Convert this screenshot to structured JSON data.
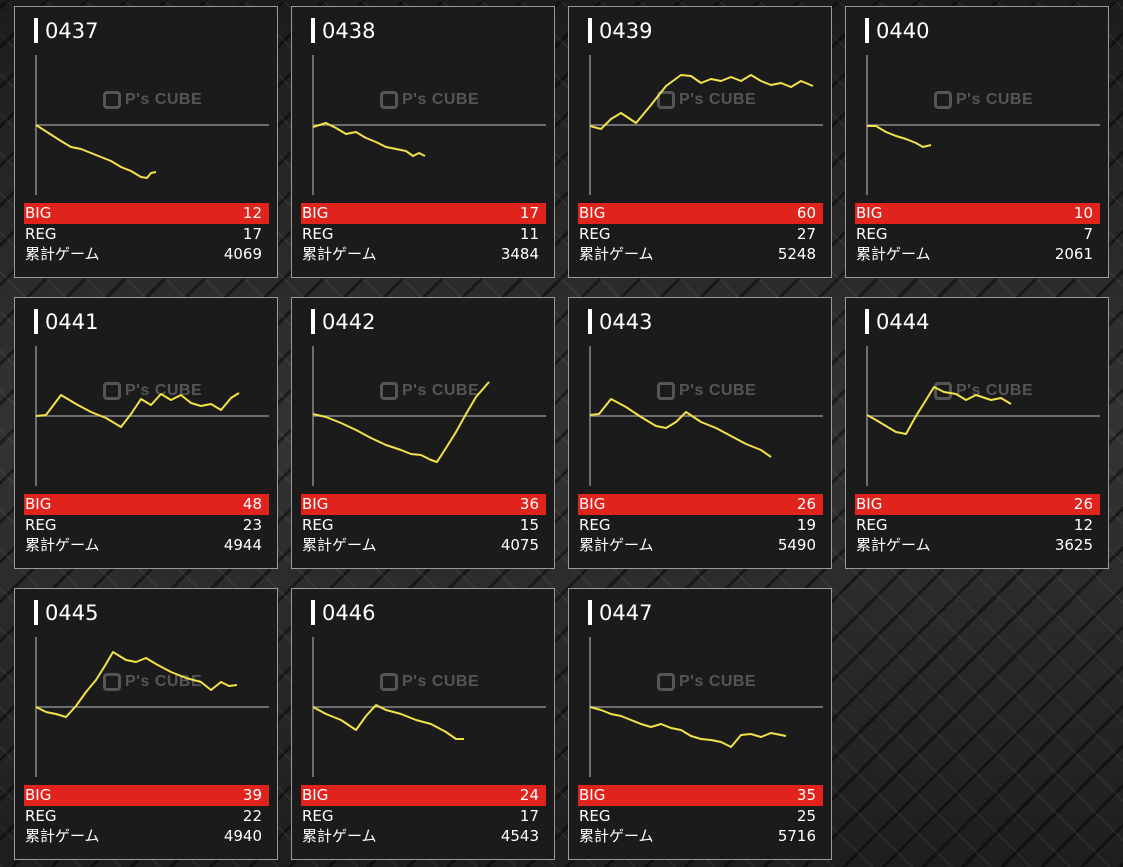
{
  "labels": {
    "big": "BIG",
    "reg": "REG",
    "total": "累計ゲーム",
    "watermark": "P's CUBE"
  },
  "colors": {
    "big_bar": "#e0231c",
    "line": "#f2e24a",
    "axis": "#8a8a8a"
  },
  "chart_scale": {
    "xlim": [
      0,
      233
    ],
    "ylim": [
      -70,
      70
    ]
  },
  "machines": [
    {
      "id": "0437",
      "big": "12",
      "reg": "17",
      "total": "4069",
      "points": [
        [
          0,
          0
        ],
        [
          25,
          -16
        ],
        [
          35,
          -22
        ],
        [
          45,
          -24
        ],
        [
          55,
          -28
        ],
        [
          65,
          -32
        ],
        [
          75,
          -36
        ],
        [
          85,
          -42
        ],
        [
          95,
          -46
        ],
        [
          105,
          -52
        ],
        [
          111,
          -53
        ],
        [
          115,
          -48
        ],
        [
          120,
          -47
        ]
      ]
    },
    {
      "id": "0438",
      "big": "17",
      "reg": "11",
      "total": "3484",
      "points": [
        [
          0,
          -2
        ],
        [
          13,
          2
        ],
        [
          23,
          -3
        ],
        [
          33,
          -9
        ],
        [
          43,
          -7
        ],
        [
          53,
          -13
        ],
        [
          63,
          -17
        ],
        [
          73,
          -22
        ],
        [
          83,
          -24
        ],
        [
          93,
          -26
        ],
        [
          100,
          -31
        ],
        [
          106,
          -28
        ],
        [
          112,
          -31
        ]
      ]
    },
    {
      "id": "0439",
      "big": "60",
      "reg": "27",
      "total": "5248",
      "points": [
        [
          0,
          -1
        ],
        [
          11,
          -4
        ],
        [
          21,
          6
        ],
        [
          31,
          12
        ],
        [
          46,
          2
        ],
        [
          61,
          20
        ],
        [
          76,
          39
        ],
        [
          91,
          50
        ],
        [
          101,
          49
        ],
        [
          111,
          42
        ],
        [
          121,
          46
        ],
        [
          131,
          44
        ],
        [
          141,
          48
        ],
        [
          151,
          44
        ],
        [
          161,
          50
        ],
        [
          171,
          44
        ],
        [
          181,
          40
        ],
        [
          191,
          42
        ],
        [
          201,
          38
        ],
        [
          211,
          44
        ],
        [
          223,
          39
        ]
      ]
    },
    {
      "id": "0440",
      "big": "10",
      "reg": "7",
      "total": "2061",
      "points": [
        [
          0,
          -1
        ],
        [
          9,
          -1
        ],
        [
          19,
          -7
        ],
        [
          29,
          -11
        ],
        [
          39,
          -14
        ],
        [
          49,
          -18
        ],
        [
          56,
          -22
        ],
        [
          64,
          -20
        ]
      ]
    },
    {
      "id": "0441",
      "big": "48",
      "reg": "23",
      "total": "4944",
      "points": [
        [
          0,
          0
        ],
        [
          10,
          1
        ],
        [
          25,
          21
        ],
        [
          40,
          12
        ],
        [
          55,
          4
        ],
        [
          70,
          -2
        ],
        [
          85,
          -11
        ],
        [
          95,
          2
        ],
        [
          105,
          17
        ],
        [
          115,
          11
        ],
        [
          125,
          22
        ],
        [
          135,
          16
        ],
        [
          145,
          21
        ],
        [
          155,
          13
        ],
        [
          165,
          10
        ],
        [
          175,
          12
        ],
        [
          185,
          6
        ],
        [
          195,
          18
        ],
        [
          203,
          23
        ]
      ]
    },
    {
      "id": "0442",
      "big": "36",
      "reg": "15",
      "total": "4075",
      "points": [
        [
          0,
          2
        ],
        [
          13,
          -1
        ],
        [
          28,
          -7
        ],
        [
          43,
          -14
        ],
        [
          58,
          -22
        ],
        [
          73,
          -29
        ],
        [
          88,
          -34
        ],
        [
          98,
          -38
        ],
        [
          108,
          -39
        ],
        [
          118,
          -44
        ],
        [
          124,
          -46
        ],
        [
          133,
          -32
        ],
        [
          143,
          -16
        ],
        [
          153,
          2
        ],
        [
          163,
          19
        ],
        [
          176,
          34
        ]
      ]
    },
    {
      "id": "0443",
      "big": "26",
      "reg": "19",
      "total": "5490",
      "points": [
        [
          0,
          1
        ],
        [
          9,
          2
        ],
        [
          21,
          17
        ],
        [
          36,
          9
        ],
        [
          51,
          -1
        ],
        [
          66,
          -10
        ],
        [
          76,
          -12
        ],
        [
          86,
          -6
        ],
        [
          96,
          4
        ],
        [
          111,
          -6
        ],
        [
          126,
          -12
        ],
        [
          141,
          -20
        ],
        [
          156,
          -28
        ],
        [
          171,
          -34
        ],
        [
          181,
          -41
        ]
      ]
    },
    {
      "id": "0444",
      "big": "26",
      "reg": "12",
      "total": "3625",
      "points": [
        [
          0,
          1
        ],
        [
          9,
          -4
        ],
        [
          19,
          -10
        ],
        [
          29,
          -16
        ],
        [
          39,
          -18
        ],
        [
          49,
          0
        ],
        [
          59,
          16
        ],
        [
          67,
          29
        ],
        [
          77,
          24
        ],
        [
          89,
          22
        ],
        [
          99,
          16
        ],
        [
          109,
          21
        ],
        [
          124,
          16
        ],
        [
          134,
          18
        ],
        [
          144,
          12
        ]
      ]
    },
    {
      "id": "0445",
      "big": "39",
      "reg": "22",
      "total": "4940",
      "points": [
        [
          0,
          0
        ],
        [
          10,
          -5
        ],
        [
          20,
          -7
        ],
        [
          30,
          -10
        ],
        [
          40,
          1
        ],
        [
          50,
          15
        ],
        [
          60,
          27
        ],
        [
          70,
          43
        ],
        [
          77,
          55
        ],
        [
          90,
          47
        ],
        [
          100,
          45
        ],
        [
          110,
          49
        ],
        [
          120,
          43
        ],
        [
          135,
          35
        ],
        [
          150,
          29
        ],
        [
          165,
          25
        ],
        [
          175,
          17
        ],
        [
          185,
          25
        ],
        [
          193,
          21
        ],
        [
          201,
          22
        ]
      ]
    },
    {
      "id": "0446",
      "big": "24",
      "reg": "17",
      "total": "4543",
      "points": [
        [
          0,
          0
        ],
        [
          13,
          -7
        ],
        [
          28,
          -13
        ],
        [
          43,
          -23
        ],
        [
          53,
          -9
        ],
        [
          63,
          2
        ],
        [
          73,
          -3
        ],
        [
          88,
          -7
        ],
        [
          103,
          -13
        ],
        [
          118,
          -17
        ],
        [
          133,
          -25
        ],
        [
          143,
          -32
        ],
        [
          151,
          -32
        ]
      ]
    },
    {
      "id": "0447",
      "big": "35",
      "reg": "25",
      "total": "5716",
      "points": [
        [
          0,
          0
        ],
        [
          11,
          -3
        ],
        [
          21,
          -7
        ],
        [
          31,
          -9
        ],
        [
          41,
          -13
        ],
        [
          51,
          -17
        ],
        [
          61,
          -20
        ],
        [
          71,
          -17
        ],
        [
          81,
          -21
        ],
        [
          91,
          -23
        ],
        [
          101,
          -29
        ],
        [
          111,
          -32
        ],
        [
          121,
          -33
        ],
        [
          131,
          -35
        ],
        [
          141,
          -40
        ],
        [
          151,
          -28
        ],
        [
          161,
          -27
        ],
        [
          171,
          -30
        ],
        [
          181,
          -26
        ],
        [
          196,
          -29
        ]
      ]
    }
  ]
}
